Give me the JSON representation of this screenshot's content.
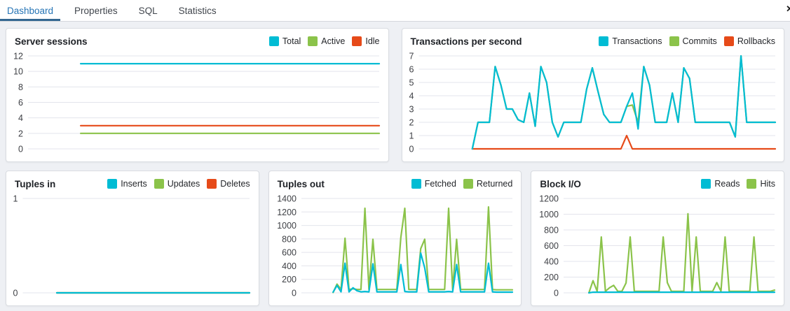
{
  "tabs": [
    {
      "label": "Dashboard",
      "active": true
    },
    {
      "label": "Properties",
      "active": false
    },
    {
      "label": "SQL",
      "active": false
    },
    {
      "label": "Statistics",
      "active": false
    }
  ],
  "header": {
    "close_icon": "✕"
  },
  "colors": {
    "active_tab_text": "#2574b5",
    "active_tab_underline": "#336791",
    "cyan": "#00BCD4",
    "green": "#8BC34A",
    "red": "#E64A19",
    "grid": "#e3e4ec",
    "tick_text": "#3d3f44"
  },
  "chart_data": {
    "server_sessions": {
      "type": "line",
      "title": "Server sessions",
      "ylim": [
        0,
        12
      ],
      "yticks": [
        0,
        2,
        4,
        6,
        8,
        10,
        12
      ],
      "x_start_frac": 0.15,
      "grid": true,
      "legend_position": "top-right",
      "series": [
        {
          "name": "Total",
          "color": "#00BCD4",
          "values": [
            11,
            11
          ]
        },
        {
          "name": "Active",
          "color": "#8BC34A",
          "values": [
            2,
            2
          ]
        },
        {
          "name": "Idle",
          "color": "#E64A19",
          "values": [
            3,
            3
          ]
        }
      ]
    },
    "transactions_per_second": {
      "type": "line",
      "title": "Transactions per second",
      "ylim": [
        0,
        7
      ],
      "yticks": [
        0,
        1,
        2,
        3,
        4,
        5,
        6,
        7
      ],
      "x_start_frac": 0.15,
      "grid": true,
      "legend_position": "top-right",
      "series": [
        {
          "name": "Transactions",
          "color": "#00BCD4",
          "values": [
            0,
            2,
            2,
            2,
            6.2,
            4.8,
            3,
            3,
            2.2,
            2,
            4.2,
            1.7,
            6.2,
            5,
            2,
            0.9,
            2,
            2,
            2,
            2,
            4.5,
            6.1,
            4.3,
            2.6,
            2,
            2,
            2,
            3.2,
            4.2,
            1.5,
            6.2,
            4.8,
            2,
            2,
            2,
            4.2,
            2,
            6.1,
            5.3,
            2,
            2,
            2,
            2,
            2,
            2,
            2,
            0.9,
            7,
            2,
            2,
            2,
            2,
            2,
            2
          ]
        },
        {
          "name": "Commits",
          "color": "#8BC34A",
          "values": [
            0,
            2,
            2,
            2,
            6.2,
            4.8,
            3,
            3,
            2.2,
            2,
            4.2,
            1.7,
            6.2,
            5,
            2,
            0.9,
            2,
            2,
            2,
            2,
            4.5,
            6.1,
            4.3,
            2.6,
            2,
            2,
            2,
            3.2,
            3.3,
            2,
            6.2,
            4.8,
            2,
            2,
            2,
            4.2,
            2,
            6.1,
            5.3,
            2,
            2,
            2,
            2,
            2,
            2,
            2,
            0.9,
            7,
            2,
            2,
            2,
            2,
            2,
            2
          ]
        },
        {
          "name": "Rollbacks",
          "color": "#E64A19",
          "values": [
            0,
            0,
            0,
            0,
            0,
            0,
            0,
            0,
            0,
            0,
            0,
            0,
            0,
            0,
            0,
            0,
            0,
            0,
            0,
            0,
            0,
            0,
            0,
            0,
            0,
            0,
            0,
            1,
            0,
            0,
            0,
            0,
            0,
            0,
            0,
            0,
            0,
            0,
            0,
            0,
            0,
            0,
            0,
            0,
            0,
            0,
            0,
            0,
            0,
            0,
            0,
            0,
            0,
            0
          ]
        }
      ]
    },
    "tuples_in": {
      "type": "line",
      "title": "Tuples in",
      "ylim": [
        0,
        1
      ],
      "yticks": [
        0,
        1
      ],
      "x_start_frac": 0.15,
      "grid": true,
      "legend_position": "top-right",
      "series": [
        {
          "name": "Inserts",
          "color": "#00BCD4",
          "values": [
            0,
            0
          ]
        },
        {
          "name": "Updates",
          "color": "#8BC34A",
          "values": [
            0,
            0
          ]
        },
        {
          "name": "Deletes",
          "color": "#E64A19",
          "values": [
            0,
            0
          ]
        }
      ]
    },
    "tuples_out": {
      "type": "line",
      "title": "Tuples out",
      "ylim": [
        0,
        1400
      ],
      "yticks": [
        0,
        200,
        400,
        600,
        800,
        1000,
        1200,
        1400
      ],
      "x_start_frac": 0.15,
      "grid": true,
      "legend_position": "top-right",
      "series": [
        {
          "name": "Fetched",
          "color": "#00BCD4",
          "values": [
            10,
            110,
            15,
            440,
            15,
            75,
            30,
            15,
            20,
            15,
            430,
            15,
            15,
            15,
            15,
            15,
            15,
            420,
            20,
            15,
            15,
            15,
            590,
            370,
            15,
            15,
            15,
            15,
            15,
            20,
            15,
            420,
            15,
            15,
            15,
            15,
            15,
            15,
            15,
            440,
            15,
            10,
            10,
            10,
            10,
            10
          ]
        },
        {
          "name": "Returned",
          "color": "#8BC34A",
          "values": [
            5,
            130,
            50,
            810,
            50,
            60,
            50,
            50,
            1255,
            50,
            795,
            50,
            50,
            50,
            50,
            50,
            50,
            820,
            1255,
            50,
            50,
            50,
            655,
            795,
            50,
            50,
            50,
            50,
            50,
            1255,
            50,
            795,
            50,
            50,
            50,
            50,
            50,
            50,
            50,
            1275,
            50,
            45,
            45,
            45,
            45,
            45
          ]
        }
      ]
    },
    "block_io": {
      "type": "line",
      "title": "Block I/O",
      "ylim": [
        0,
        1200
      ],
      "yticks": [
        0,
        200,
        400,
        600,
        800,
        1000,
        1200
      ],
      "x_start_frac": 0.12,
      "grid": true,
      "legend_position": "top-right",
      "series": [
        {
          "name": "Reads",
          "color": "#00BCD4",
          "values": [
            0,
            8,
            8,
            8,
            8,
            8,
            8,
            8,
            8,
            8,
            8,
            8,
            8,
            8,
            8,
            8,
            8,
            8,
            8,
            8,
            8,
            8,
            8,
            8,
            8,
            8,
            8,
            8,
            8,
            8,
            8,
            8,
            8,
            8,
            8,
            8,
            8,
            8,
            8,
            8,
            8,
            8,
            8,
            8,
            8,
            8
          ]
        },
        {
          "name": "Hits",
          "color": "#8BC34A",
          "values": [
            0,
            155,
            20,
            710,
            20,
            65,
            95,
            20,
            20,
            125,
            710,
            20,
            20,
            20,
            20,
            20,
            20,
            20,
            710,
            130,
            20,
            20,
            20,
            20,
            1005,
            20,
            710,
            20,
            20,
            20,
            20,
            130,
            20,
            710,
            20,
            20,
            20,
            20,
            20,
            20,
            710,
            20,
            20,
            20,
            20,
            35
          ]
        }
      ]
    }
  }
}
